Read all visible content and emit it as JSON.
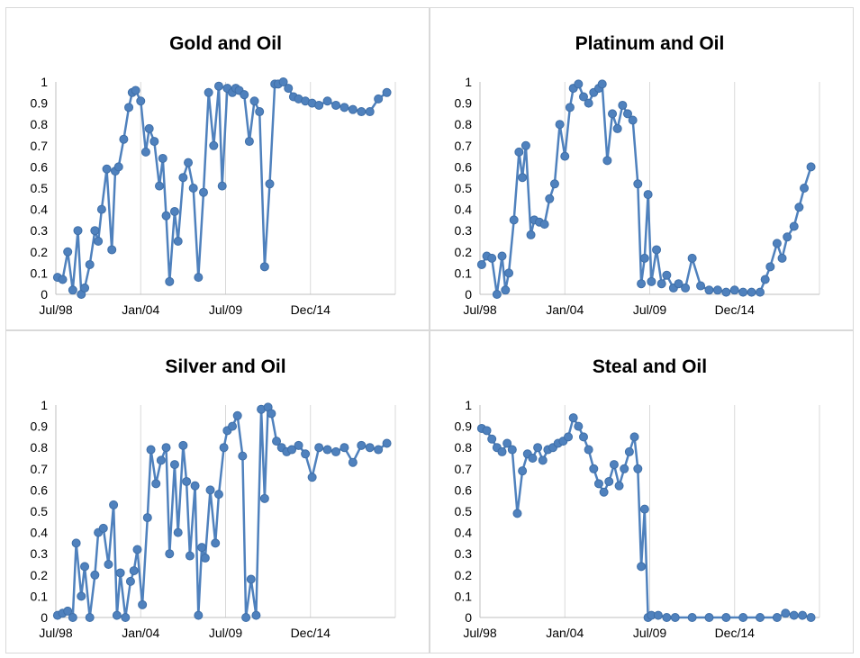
{
  "chart_data": [
    {
      "type": "line",
      "title": "Gold and Oil",
      "xlabel": "",
      "ylabel": "",
      "x_ticks": [
        "Jul/98",
        "Jan/04",
        "Jul/09",
        "Dec/14"
      ],
      "y_ticks": [
        "0",
        "0.1",
        "0.2",
        "0.3",
        "0.4",
        "0.5",
        "0.6",
        "0.7",
        "0.8",
        "0.9",
        "1"
      ],
      "ylim": [
        0,
        1
      ],
      "xlim": [
        1998.5,
        2018.5
      ],
      "grid": "vertical",
      "color": "#4f81bd",
      "series": [
        {
          "x": [
            1998.6,
            1998.9,
            1999.2,
            1999.5,
            1999.8,
            2000.0,
            2000.2,
            2000.5,
            2000.8,
            2001.0,
            2001.2,
            2001.5,
            2001.8,
            2002.0,
            2002.2,
            2002.5,
            2002.8,
            2003.0,
            2003.2,
            2003.5,
            2003.8,
            2004.0,
            2004.3,
            2004.6,
            2004.8,
            2005.0,
            2005.2,
            2005.5,
            2005.7,
            2006.0,
            2006.3,
            2006.6,
            2006.9,
            2007.2,
            2007.5,
            2007.8,
            2008.1,
            2008.3,
            2008.6,
            2008.9,
            2009.1,
            2009.3,
            2009.6,
            2009.9,
            2010.2,
            2010.5,
            2010.8,
            2011.1,
            2011.4,
            2011.6,
            2011.9,
            2012.2,
            2012.5,
            2012.8,
            2013.2,
            2013.6,
            2014.0,
            2014.5,
            2015.0,
            2015.5,
            2016.0,
            2016.5,
            2017.0,
            2017.5,
            2018.0
          ],
          "values": [
            0.08,
            0.07,
            0.2,
            0.02,
            0.3,
            0.0,
            0.03,
            0.14,
            0.3,
            0.25,
            0.4,
            0.59,
            0.21,
            0.58,
            0.6,
            0.73,
            0.88,
            0.95,
            0.96,
            0.91,
            0.67,
            0.78,
            0.72,
            0.51,
            0.64,
            0.37,
            0.06,
            0.39,
            0.25,
            0.55,
            0.62,
            0.5,
            0.08,
            0.48,
            0.95,
            0.7,
            0.98,
            0.51,
            0.97,
            0.95,
            0.97,
            0.96,
            0.94,
            0.72,
            0.91,
            0.86,
            0.13,
            0.52,
            0.99,
            0.99,
            1.0,
            0.97,
            0.93,
            0.92,
            0.91,
            0.9,
            0.89,
            0.91,
            0.89,
            0.88,
            0.87,
            0.86,
            0.86,
            0.92,
            0.95
          ]
        }
      ]
    },
    {
      "type": "line",
      "title": "Platinum and Oil",
      "xlabel": "",
      "ylabel": "",
      "x_ticks": [
        "Jul/98",
        "Jan/04",
        "Jul/09",
        "Dec/14"
      ],
      "y_ticks": [
        "0",
        "0.1",
        "0.2",
        "0.3",
        "0.4",
        "0.5",
        "0.6",
        "0.7",
        "0.8",
        "0.9",
        "1"
      ],
      "ylim": [
        0,
        1
      ],
      "xlim": [
        1998.5,
        2018.5
      ],
      "grid": "vertical",
      "color": "#4f81bd",
      "series": [
        {
          "x": [
            1998.6,
            1998.9,
            1999.2,
            1999.5,
            1999.8,
            2000.0,
            2000.2,
            2000.5,
            2000.8,
            2001.0,
            2001.2,
            2001.5,
            2001.7,
            2002.0,
            2002.3,
            2002.6,
            2002.9,
            2003.2,
            2003.5,
            2003.8,
            2004.0,
            2004.3,
            2004.6,
            2004.9,
            2005.2,
            2005.5,
            2005.7,
            2006.0,
            2006.3,
            2006.6,
            2006.9,
            2007.2,
            2007.5,
            2007.8,
            2008.0,
            2008.2,
            2008.4,
            2008.6,
            2008.9,
            2009.2,
            2009.5,
            2009.9,
            2010.2,
            2010.6,
            2011.0,
            2011.5,
            2012.0,
            2012.5,
            2013.0,
            2013.5,
            2014.0,
            2014.5,
            2015.0,
            2015.3,
            2015.6,
            2016.0,
            2016.3,
            2016.6,
            2017.0,
            2017.3,
            2017.6,
            2018.0
          ],
          "values": [
            0.14,
            0.18,
            0.17,
            0.0,
            0.18,
            0.02,
            0.1,
            0.35,
            0.67,
            0.55,
            0.7,
            0.28,
            0.35,
            0.34,
            0.33,
            0.45,
            0.52,
            0.8,
            0.65,
            0.88,
            0.97,
            0.99,
            0.93,
            0.9,
            0.95,
            0.97,
            0.99,
            0.63,
            0.85,
            0.78,
            0.89,
            0.85,
            0.82,
            0.52,
            0.05,
            0.17,
            0.47,
            0.06,
            0.21,
            0.05,
            0.09,
            0.03,
            0.05,
            0.03,
            0.17,
            0.04,
            0.02,
            0.02,
            0.01,
            0.02,
            0.01,
            0.01,
            0.01,
            0.07,
            0.13,
            0.24,
            0.17,
            0.27,
            0.32,
            0.41,
            0.5,
            0.6
          ]
        }
      ]
    },
    {
      "type": "line",
      "title": "Silver and Oil",
      "xlabel": "",
      "ylabel": "",
      "x_ticks": [
        "Jul/98",
        "Jan/04",
        "Jul/09",
        "Dec/14"
      ],
      "y_ticks": [
        "0",
        "0.1",
        "0.2",
        "0.3",
        "0.4",
        "0.5",
        "0.6",
        "0.7",
        "0.8",
        "0.9",
        "1"
      ],
      "ylim": [
        0,
        1
      ],
      "xlim": [
        1998.5,
        2018.5
      ],
      "grid": "vertical",
      "color": "#4f81bd",
      "series": [
        {
          "x": [
            1998.6,
            1998.9,
            1999.2,
            1999.5,
            1999.7,
            2000.0,
            2000.2,
            2000.5,
            2000.8,
            2001.0,
            2001.3,
            2001.6,
            2001.9,
            2002.1,
            2002.3,
            2002.6,
            2002.9,
            2003.1,
            2003.3,
            2003.6,
            2003.9,
            2004.1,
            2004.4,
            2004.7,
            2005.0,
            2005.2,
            2005.5,
            2005.7,
            2006.0,
            2006.2,
            2006.4,
            2006.7,
            2006.9,
            2007.1,
            2007.3,
            2007.6,
            2007.9,
            2008.1,
            2008.4,
            2008.6,
            2008.9,
            2009.2,
            2009.5,
            2009.7,
            2010.0,
            2010.3,
            2010.6,
            2010.8,
            2011.0,
            2011.2,
            2011.5,
            2011.8,
            2012.1,
            2012.4,
            2012.8,
            2013.2,
            2013.6,
            2014.0,
            2014.5,
            2015.0,
            2015.5,
            2016.0,
            2016.5,
            2017.0,
            2017.5,
            2018.0
          ],
          "values": [
            0.01,
            0.02,
            0.03,
            0.0,
            0.35,
            0.1,
            0.24,
            0.0,
            0.2,
            0.4,
            0.42,
            0.25,
            0.53,
            0.01,
            0.21,
            0.0,
            0.17,
            0.22,
            0.32,
            0.06,
            0.47,
            0.79,
            0.63,
            0.74,
            0.8,
            0.3,
            0.72,
            0.4,
            0.81,
            0.64,
            0.29,
            0.62,
            0.01,
            0.33,
            0.28,
            0.6,
            0.35,
            0.58,
            0.8,
            0.88,
            0.9,
            0.95,
            0.76,
            0.0,
            0.18,
            0.01,
            0.98,
            0.56,
            0.99,
            0.96,
            0.83,
            0.8,
            0.78,
            0.79,
            0.81,
            0.77,
            0.66,
            0.8,
            0.79,
            0.78,
            0.8,
            0.73,
            0.81,
            0.8,
            0.79,
            0.82
          ]
        }
      ]
    },
    {
      "type": "line",
      "title": "Steal and Oil",
      "xlabel": "",
      "ylabel": "",
      "x_ticks": [
        "Jul/98",
        "Jan/04",
        "Jul/09",
        "Dec/14"
      ],
      "y_ticks": [
        "0",
        "0.1",
        "0.2",
        "0.3",
        "0.4",
        "0.5",
        "0.6",
        "0.7",
        "0.8",
        "0.9",
        "1"
      ],
      "ylim": [
        0,
        1
      ],
      "xlim": [
        1998.5,
        2018.5
      ],
      "grid": "vertical",
      "color": "#4f81bd",
      "series": [
        {
          "x": [
            1998.6,
            1998.9,
            1999.2,
            1999.5,
            1999.8,
            2000.1,
            2000.4,
            2000.7,
            2001.0,
            2001.3,
            2001.6,
            2001.9,
            2002.2,
            2002.5,
            2002.8,
            2003.1,
            2003.4,
            2003.7,
            2004.0,
            2004.3,
            2004.6,
            2004.9,
            2005.2,
            2005.5,
            2005.8,
            2006.1,
            2006.4,
            2006.7,
            2007.0,
            2007.3,
            2007.6,
            2007.8,
            2008.0,
            2008.2,
            2008.4,
            2008.6,
            2009.0,
            2009.5,
            2010.0,
            2011.0,
            2012.0,
            2013.0,
            2014.0,
            2015.0,
            2016.0,
            2016.5,
            2017.0,
            2017.5,
            2018.0
          ],
          "values": [
            0.89,
            0.88,
            0.84,
            0.8,
            0.78,
            0.82,
            0.79,
            0.49,
            0.69,
            0.77,
            0.75,
            0.8,
            0.74,
            0.79,
            0.8,
            0.82,
            0.83,
            0.85,
            0.94,
            0.9,
            0.85,
            0.79,
            0.7,
            0.63,
            0.59,
            0.64,
            0.72,
            0.62,
            0.7,
            0.78,
            0.85,
            0.7,
            0.24,
            0.51,
            0.0,
            0.01,
            0.01,
            0.0,
            0.0,
            0.0,
            0.0,
            0.0,
            0.0,
            0.0,
            0.0,
            0.02,
            0.01,
            0.01,
            0.0
          ]
        }
      ]
    }
  ]
}
